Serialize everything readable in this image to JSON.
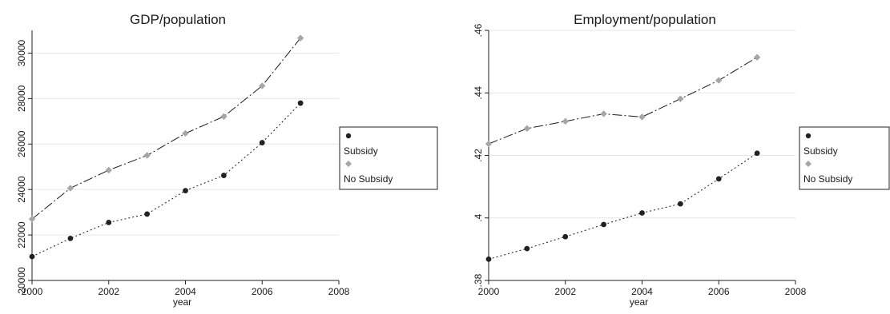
{
  "chart_data": [
    {
      "type": "line",
      "title": "GDP/population",
      "xlabel": "year",
      "ylabel": "",
      "xlim": [
        2000,
        2008
      ],
      "ylim": [
        20000,
        31000
      ],
      "xticks": [
        "2000",
        "2002",
        "2004",
        "2006",
        "2008"
      ],
      "yticks": [
        "20000",
        "22000",
        "24000",
        "26000",
        "28000",
        "30000"
      ],
      "grid": true,
      "legend_position": "right",
      "x": [
        2000,
        2001,
        2002,
        2003,
        2004,
        2005,
        2006,
        2007
      ],
      "series": [
        {
          "name": "Subsidy",
          "marker": "circle",
          "line": "dotted",
          "color": "#222222",
          "values": [
            21050,
            21850,
            22550,
            22920,
            23950,
            24620,
            26060,
            27800
          ]
        },
        {
          "name": "No Subsidy",
          "marker": "diamond",
          "line": "dashdot",
          "color": "#a6a6a6",
          "values": [
            22700,
            24060,
            24850,
            25500,
            26470,
            27210,
            28560,
            30660
          ]
        }
      ]
    },
    {
      "type": "line",
      "title": "Employment/population",
      "xlabel": "year",
      "ylabel": "",
      "xlim": [
        2000,
        2008
      ],
      "ylim": [
        0.38,
        0.46
      ],
      "xticks": [
        "2000",
        "2002",
        "2004",
        "2006",
        "2008"
      ],
      "yticks": [
        ".38",
        ".4",
        ".42",
        ".44",
        ".46"
      ],
      "grid": true,
      "legend_position": "right",
      "x": [
        2000,
        2001,
        2002,
        2003,
        2004,
        2005,
        2006,
        2007
      ],
      "series": [
        {
          "name": "Subsidy",
          "marker": "circle",
          "line": "dotted",
          "color": "#222222",
          "values": [
            0.3868,
            0.3902,
            0.394,
            0.3979,
            0.4016,
            0.4045,
            0.4125,
            0.4207
          ]
        },
        {
          "name": "No Subsidy",
          "marker": "diamond",
          "line": "dashdot",
          "color": "#a6a6a6",
          "values": [
            0.4237,
            0.4286,
            0.4309,
            0.4333,
            0.4323,
            0.4381,
            0.444,
            0.4514
          ]
        }
      ]
    }
  ]
}
